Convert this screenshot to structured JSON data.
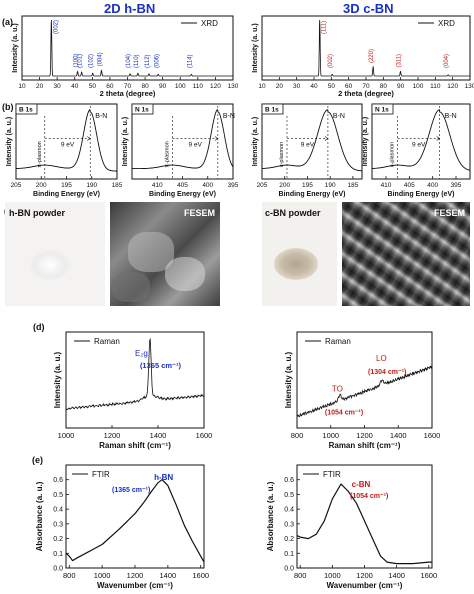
{
  "headers": {
    "left": "2D h-BN",
    "right": "3D c-BN"
  },
  "panel_labels": {
    "a": "(a)",
    "b": "(b)",
    "c": "(c)",
    "d": "(d)",
    "e": "(e)"
  },
  "colors": {
    "title": "#1a2fc7",
    "hbn_label": "#1a2fc7",
    "cbn_label": "#c41a1a",
    "line": "#111111"
  },
  "chart_data": [
    {
      "id": "xrd-hbn",
      "type": "line",
      "xlabel": "2 theta (degree)",
      "ylabel": "Intensity (a. u.)",
      "xlim": [
        10,
        130
      ],
      "xticks": [
        10,
        20,
        30,
        40,
        50,
        60,
        70,
        80,
        90,
        100,
        110,
        120,
        130
      ],
      "legend": "XRD",
      "legend_position": "top-right",
      "peaks": [
        {
          "x": 26.7,
          "h": 1.0,
          "label": "(002)"
        },
        {
          "x": 41.6,
          "h": 0.08,
          "label": "(100)"
        },
        {
          "x": 43.9,
          "h": 0.07,
          "label": "(101)"
        },
        {
          "x": 50.2,
          "h": 0.05,
          "label": "(102)"
        },
        {
          "x": 55.2,
          "h": 0.1,
          "label": "(004)"
        },
        {
          "x": 71.5,
          "h": 0.04,
          "label": "(104)"
        },
        {
          "x": 75.9,
          "h": 0.05,
          "label": "(110)"
        },
        {
          "x": 82.2,
          "h": 0.04,
          "label": "(112)"
        },
        {
          "x": 87.5,
          "h": 0.03,
          "label": "(006)"
        },
        {
          "x": 106.3,
          "h": 0.03,
          "label": "(114)"
        }
      ]
    },
    {
      "id": "xrd-cbn",
      "type": "line",
      "xlabel": "2 theta (degree)",
      "ylabel": "Intensity (a. u.)",
      "xlim": [
        10,
        130
      ],
      "xticks": [
        10,
        20,
        30,
        40,
        50,
        60,
        70,
        80,
        90,
        100,
        110,
        120,
        130
      ],
      "legend": "XRD",
      "legend_position": "top-right",
      "peaks": [
        {
          "x": 43.3,
          "h": 1.0,
          "label": "(111)"
        },
        {
          "x": 50.5,
          "h": 0.03,
          "label": "(002)"
        },
        {
          "x": 74.1,
          "h": 0.16,
          "label": "(220)"
        },
        {
          "x": 89.9,
          "h": 0.08,
          "label": "(311)"
        },
        {
          "x": 117.4,
          "h": 0.02,
          "label": "(004)"
        }
      ]
    },
    {
      "id": "xps-hbn-b1s",
      "type": "line",
      "tag": "B 1s",
      "xlabel": "Binding Energy (eV)",
      "ylabel": "Intensity (a. u.)",
      "xlim": [
        205,
        185
      ],
      "xticks": [
        205,
        200,
        195,
        190,
        185
      ],
      "main_peak": 190.3,
      "width": 1.3,
      "satellite": 199.3,
      "peak_label": "B-N",
      "satellite_label": "π-plasmon",
      "shift_label": "9 eV"
    },
    {
      "id": "xps-hbn-n1s",
      "type": "line",
      "tag": "N 1s",
      "xlabel": "Binding Energy (eV)",
      "ylabel": "Intensity (a. u.)",
      "xlim": [
        415,
        395
      ],
      "xticks": [
        410,
        405,
        400,
        395
      ],
      "main_peak": 398.0,
      "width": 1.3,
      "satellite": 407.0,
      "peak_label": "B-N",
      "satellite_label": "π-plasmon",
      "shift_label": "9 eV"
    },
    {
      "id": "xps-cbn-b1s",
      "type": "line",
      "tag": "B 1s",
      "xlabel": "Binding Energy (eV)",
      "ylabel": "Intensity (a. u.)",
      "xlim": [
        205,
        183
      ],
      "xticks": [
        205,
        200,
        195,
        190,
        185
      ],
      "main_peak": 190.5,
      "width": 2.2,
      "satellite": 199.5,
      "peak_label": "B-N",
      "satellite_label": "c-plasmon",
      "shift_label": "9 eV"
    },
    {
      "id": "xps-cbn-n1s",
      "type": "line",
      "tag": "N 1s",
      "xlabel": "Binding Energy (eV)",
      "ylabel": "Intensity (a. u.)",
      "xlim": [
        413,
        392
      ],
      "xticks": [
        410,
        405,
        400,
        395
      ],
      "main_peak": 398.5,
      "width": 2.2,
      "satellite": 407.5,
      "peak_label": "B-N",
      "satellite_label": "c-plasmon",
      "shift_label": "9 eV"
    },
    {
      "id": "raman-hbn",
      "type": "line",
      "xlabel": "Raman shift (cm⁻¹)",
      "ylabel": "Intensity (a. u.)",
      "xlim": [
        1000,
        1600
      ],
      "xticks": [
        1000,
        1200,
        1400,
        1600
      ],
      "legend": "Raman",
      "legend_position": "top-left",
      "peaks": [
        {
          "x": 1365,
          "label": "E₂g",
          "value_label": "(1365 cm⁻¹)"
        }
      ]
    },
    {
      "id": "raman-cbn",
      "type": "line",
      "xlabel": "Raman shift (cm⁻¹)",
      "ylabel": "Intensity (a. u.)",
      "xlim": [
        800,
        1600
      ],
      "xticks": [
        800,
        1000,
        1200,
        1400,
        1600
      ],
      "legend": "Raman",
      "legend_position": "top-left",
      "peaks": [
        {
          "x": 1054,
          "label": "TO",
          "value_label": "(1054 cm⁻¹)"
        },
        {
          "x": 1304,
          "label": "LO",
          "value_label": "(1304 cm⁻¹)"
        }
      ]
    },
    {
      "id": "ftir-hbn",
      "type": "line",
      "xlabel": "Wavenumber (cm⁻¹)",
      "ylabel": "Absorbance (a. u.)",
      "xlim": [
        780,
        1620
      ],
      "ylim": [
        0.0,
        0.7
      ],
      "xticks": [
        800,
        1000,
        1200,
        1400,
        1600
      ],
      "yticks": [
        0.0,
        0.1,
        0.2,
        0.3,
        0.4,
        0.5,
        0.6
      ],
      "legend": "FTIR",
      "legend_position": "top-left",
      "peak_label": "h-BN",
      "value_label": "(1365 cm⁻¹)",
      "x": [
        780,
        800,
        820,
        850,
        900,
        950,
        1000,
        1100,
        1200,
        1250,
        1300,
        1340,
        1365,
        1400,
        1450,
        1500,
        1550,
        1600,
        1620
      ],
      "y": [
        0.1,
        0.08,
        0.05,
        0.07,
        0.1,
        0.13,
        0.16,
        0.26,
        0.37,
        0.44,
        0.52,
        0.58,
        0.6,
        0.56,
        0.43,
        0.29,
        0.18,
        0.08,
        0.04
      ]
    },
    {
      "id": "ftir-cbn",
      "type": "line",
      "xlabel": "Wavenumber (cm⁻¹)",
      "ylabel": "Absorbance (a. u.)",
      "xlim": [
        780,
        1620
      ],
      "ylim": [
        0.0,
        0.7
      ],
      "xticks": [
        800,
        1000,
        1200,
        1400,
        1600
      ],
      "yticks": [
        0.0,
        0.1,
        0.2,
        0.3,
        0.4,
        0.5,
        0.6
      ],
      "legend": "FTIR",
      "legend_position": "top-left",
      "peak_label": "c-BN",
      "value_label": "(1054 cm⁻¹)",
      "x": [
        780,
        800,
        850,
        900,
        950,
        1000,
        1054,
        1100,
        1150,
        1200,
        1250,
        1300,
        1340,
        1400,
        1500,
        1600,
        1620
      ],
      "y": [
        0.22,
        0.21,
        0.2,
        0.23,
        0.32,
        0.47,
        0.57,
        0.52,
        0.44,
        0.32,
        0.2,
        0.08,
        0.04,
        0.03,
        0.03,
        0.04,
        0.04
      ]
    }
  ],
  "photos": {
    "hbn_powder": "h-BN powder",
    "hbn_fesem": "FESEM",
    "cbn_powder": "c-BN powder",
    "cbn_fesem": "FESEM"
  }
}
